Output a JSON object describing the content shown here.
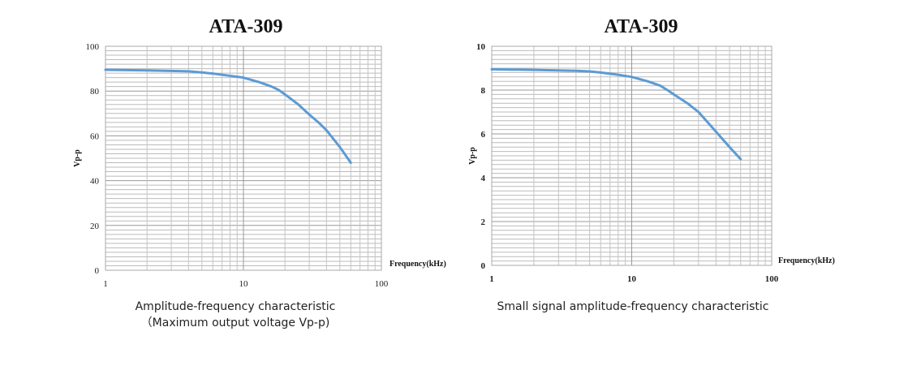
{
  "chart_data": [
    {
      "type": "line",
      "title": "ATA-309",
      "xlabel": "Frequency(kHz)",
      "ylabel": "Vp-p",
      "xscale": "log",
      "xlim": [
        1,
        100
      ],
      "ylim": [
        0,
        100
      ],
      "yticks": [
        0,
        20,
        40,
        60,
        80,
        100
      ],
      "xticks": [
        1,
        10,
        100
      ],
      "grid": true,
      "caption": [
        "Amplitude-frequency characteristic",
        "（Maximum output voltage Vp-p)"
      ],
      "series": [
        {
          "name": "Vp-p",
          "color": "#5b9bd5",
          "x": [
            1,
            2,
            4,
            5,
            6,
            8,
            10,
            13,
            16,
            18,
            20,
            25,
            30,
            35,
            40,
            50,
            60
          ],
          "y": [
            89.5,
            89.2,
            88.8,
            88.3,
            87.8,
            86.8,
            86,
            84,
            82,
            80.5,
            78.5,
            74,
            69.5,
            66,
            62.5,
            55,
            48
          ]
        }
      ]
    },
    {
      "type": "line",
      "title": "ATA-309",
      "xlabel": "Frequency(kHz)",
      "ylabel": "Vp-p",
      "xscale": "log",
      "xlim": [
        1,
        100
      ],
      "ylim": [
        0,
        10
      ],
      "yticks": [
        0,
        2,
        4,
        6,
        8,
        10
      ],
      "xticks": [
        1,
        10,
        100
      ],
      "grid": true,
      "caption": [
        "Small signal amplitude-frequency characteristic"
      ],
      "series": [
        {
          "name": "Vp-p",
          "color": "#5b9bd5",
          "x": [
            1,
            2,
            4,
            5,
            6,
            8,
            10,
            13,
            16,
            18,
            20,
            25,
            30,
            40,
            50,
            60
          ],
          "y": [
            8.95,
            8.92,
            8.88,
            8.85,
            8.8,
            8.7,
            8.6,
            8.4,
            8.2,
            8.0,
            7.8,
            7.4,
            7.0,
            6.1,
            5.4,
            4.85
          ]
        }
      ]
    }
  ]
}
